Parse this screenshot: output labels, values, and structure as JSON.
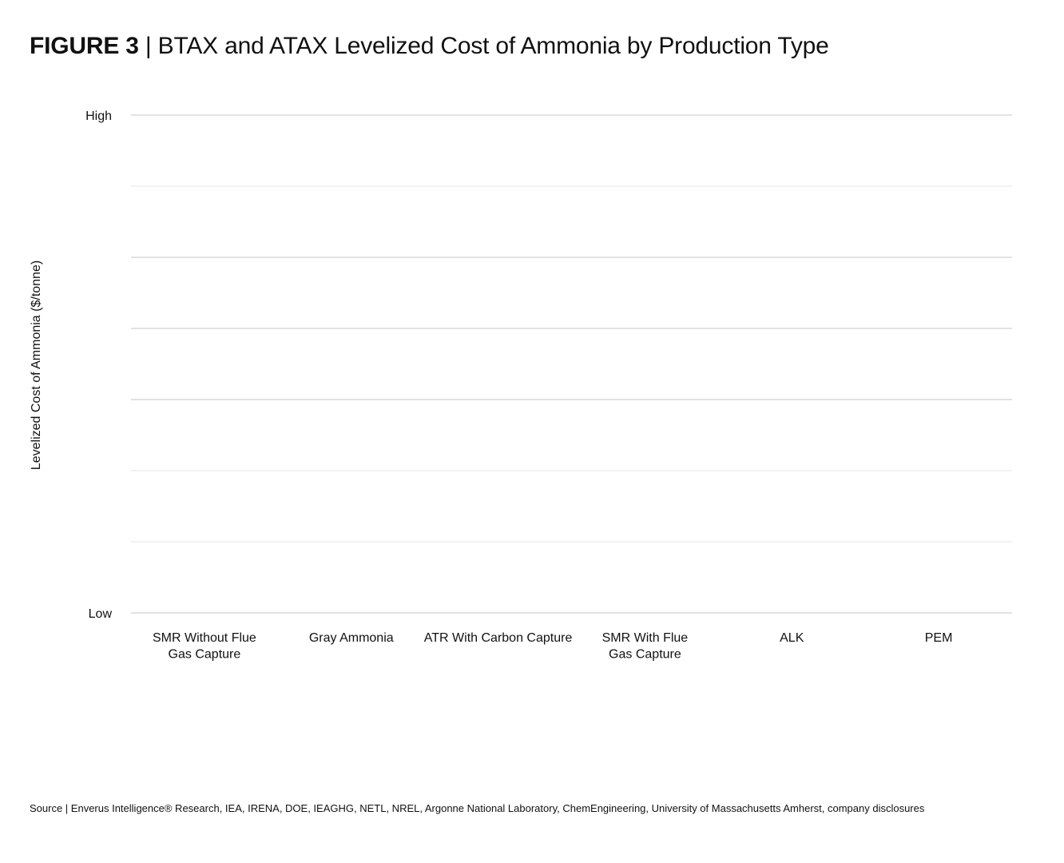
{
  "figure": {
    "number": "FIGURE 3",
    "separator": "|",
    "title": "BTAX and ATAX Levelized Cost of Ammonia by Production Type"
  },
  "source": "Source | Enverus Intelligence® Research, IEA, IRENA, DOE, IEAGHG, NETL, NREL, Argonne National Laboratory, ChemEngineering, University of Massachusetts Amherst, company disclosures",
  "chart_data": {
    "type": "bar",
    "title": "BTAX and ATAX Levelized Cost of Ammonia by Production Type",
    "ylabel": "Levelized Cost of Ammonia ($/tonne)",
    "xlabel": "",
    "categories": [
      "SMR Without Flue Gas Capture",
      "Gray Ammonia",
      "ATR With Carbon Capture",
      "SMR With Flue Gas Capture",
      "ALK",
      "PEM"
    ],
    "category_lines": [
      [
        "SMR Without Flue",
        "Gas Capture"
      ],
      [
        "Gray Ammonia"
      ],
      [
        "ATR With Carbon Capture"
      ],
      [
        "SMR With Flue",
        "Gas Capture"
      ],
      [
        "ALK"
      ],
      [
        "PEM"
      ]
    ],
    "y_tick_labels": {
      "top": "High",
      "bottom": "Low"
    },
    "gridline_count": 8,
    "series": [],
    "grid": true,
    "legend": "none",
    "colors": {
      "grid_major": "#c6c6c6",
      "grid_minor": "#e6e6e6",
      "text": "#111111"
    }
  }
}
